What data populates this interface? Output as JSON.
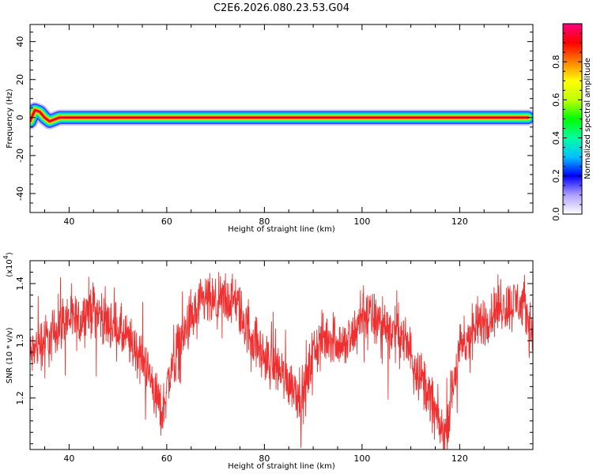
{
  "title": "C2E6.2026.080.23.53.G04",
  "colors": {
    "snr_line": "#f03030",
    "frame": "#000000",
    "background": "#ffffff"
  },
  "chart_data": [
    {
      "type": "heatmap",
      "name": "spectrogram",
      "xlabel": "Height of straight line (km)",
      "ylabel": "Frequency (Hz)",
      "xlim": [
        32,
        135
      ],
      "ylim": [
        -50,
        49
      ],
      "x_ticks": [
        40,
        60,
        80,
        100,
        120
      ],
      "y_ticks": [
        -40,
        -20,
        0,
        20,
        40
      ],
      "ridge": {
        "x": [
          32,
          33,
          34,
          35,
          36,
          37,
          38,
          40,
          50,
          60,
          70,
          80,
          90,
          100,
          110,
          120,
          130,
          134
        ],
        "y": [
          -2,
          4,
          3,
          0,
          -2,
          -1,
          0,
          0,
          0,
          0,
          0,
          0,
          0,
          0,
          0,
          0,
          0,
          0
        ]
      },
      "colorbar": {
        "label": "Normalized spectral amplitude",
        "range": [
          0,
          1
        ],
        "ticks": [
          "0.0",
          "0.2",
          "0.4",
          "0.6",
          "0.8"
        ],
        "tick_values": [
          0.0,
          0.2,
          0.4,
          0.6,
          0.8
        ],
        "gradient": [
          "#ffffff",
          "#b0a0ff",
          "#0000ff",
          "#00c0ff",
          "#00ffa0",
          "#00ff00",
          "#c0ff00",
          "#ffff00",
          "#ff8000",
          "#ff0000",
          "#ff0080"
        ]
      }
    },
    {
      "type": "line",
      "name": "snr",
      "xlabel": "Height of straight line (km)",
      "ylabel": "SNR (10 * v/v)",
      "y_multiplier": "(x10",
      "y_multiplier_exp": "4",
      "y_multiplier_close": ")",
      "xlim": [
        32,
        135
      ],
      "ylim": [
        1.11,
        1.44
      ],
      "x_ticks": [
        40,
        60,
        80,
        100,
        120
      ],
      "y_ticks": [
        1.2,
        1.3,
        1.4
      ],
      "y_tick_labels": [
        "1.2",
        "1.3",
        "1.4"
      ],
      "trend": {
        "x": [
          32,
          34,
          36,
          38,
          40,
          42,
          44,
          46,
          48,
          50,
          52,
          54,
          56,
          58,
          59,
          60,
          62,
          64,
          66,
          68,
          70,
          72,
          74,
          76,
          78,
          80,
          82,
          84,
          86,
          88,
          90,
          92,
          94,
          96,
          98,
          100,
          102,
          104,
          106,
          108,
          110,
          112,
          114,
          116,
          117,
          118,
          120,
          122,
          124,
          126,
          128,
          130,
          132,
          134,
          135
        ],
        "y": [
          1.27,
          1.3,
          1.3,
          1.33,
          1.34,
          1.33,
          1.36,
          1.35,
          1.33,
          1.32,
          1.3,
          1.28,
          1.25,
          1.2,
          1.17,
          1.22,
          1.28,
          1.32,
          1.35,
          1.37,
          1.36,
          1.37,
          1.37,
          1.33,
          1.3,
          1.27,
          1.26,
          1.24,
          1.22,
          1.2,
          1.28,
          1.3,
          1.31,
          1.29,
          1.3,
          1.35,
          1.34,
          1.33,
          1.32,
          1.31,
          1.28,
          1.24,
          1.2,
          1.15,
          1.13,
          1.19,
          1.28,
          1.31,
          1.33,
          1.34,
          1.36,
          1.36,
          1.37,
          1.34,
          1.31
        ]
      },
      "noise_amplitude": 0.035,
      "noise_points": 1800
    }
  ]
}
